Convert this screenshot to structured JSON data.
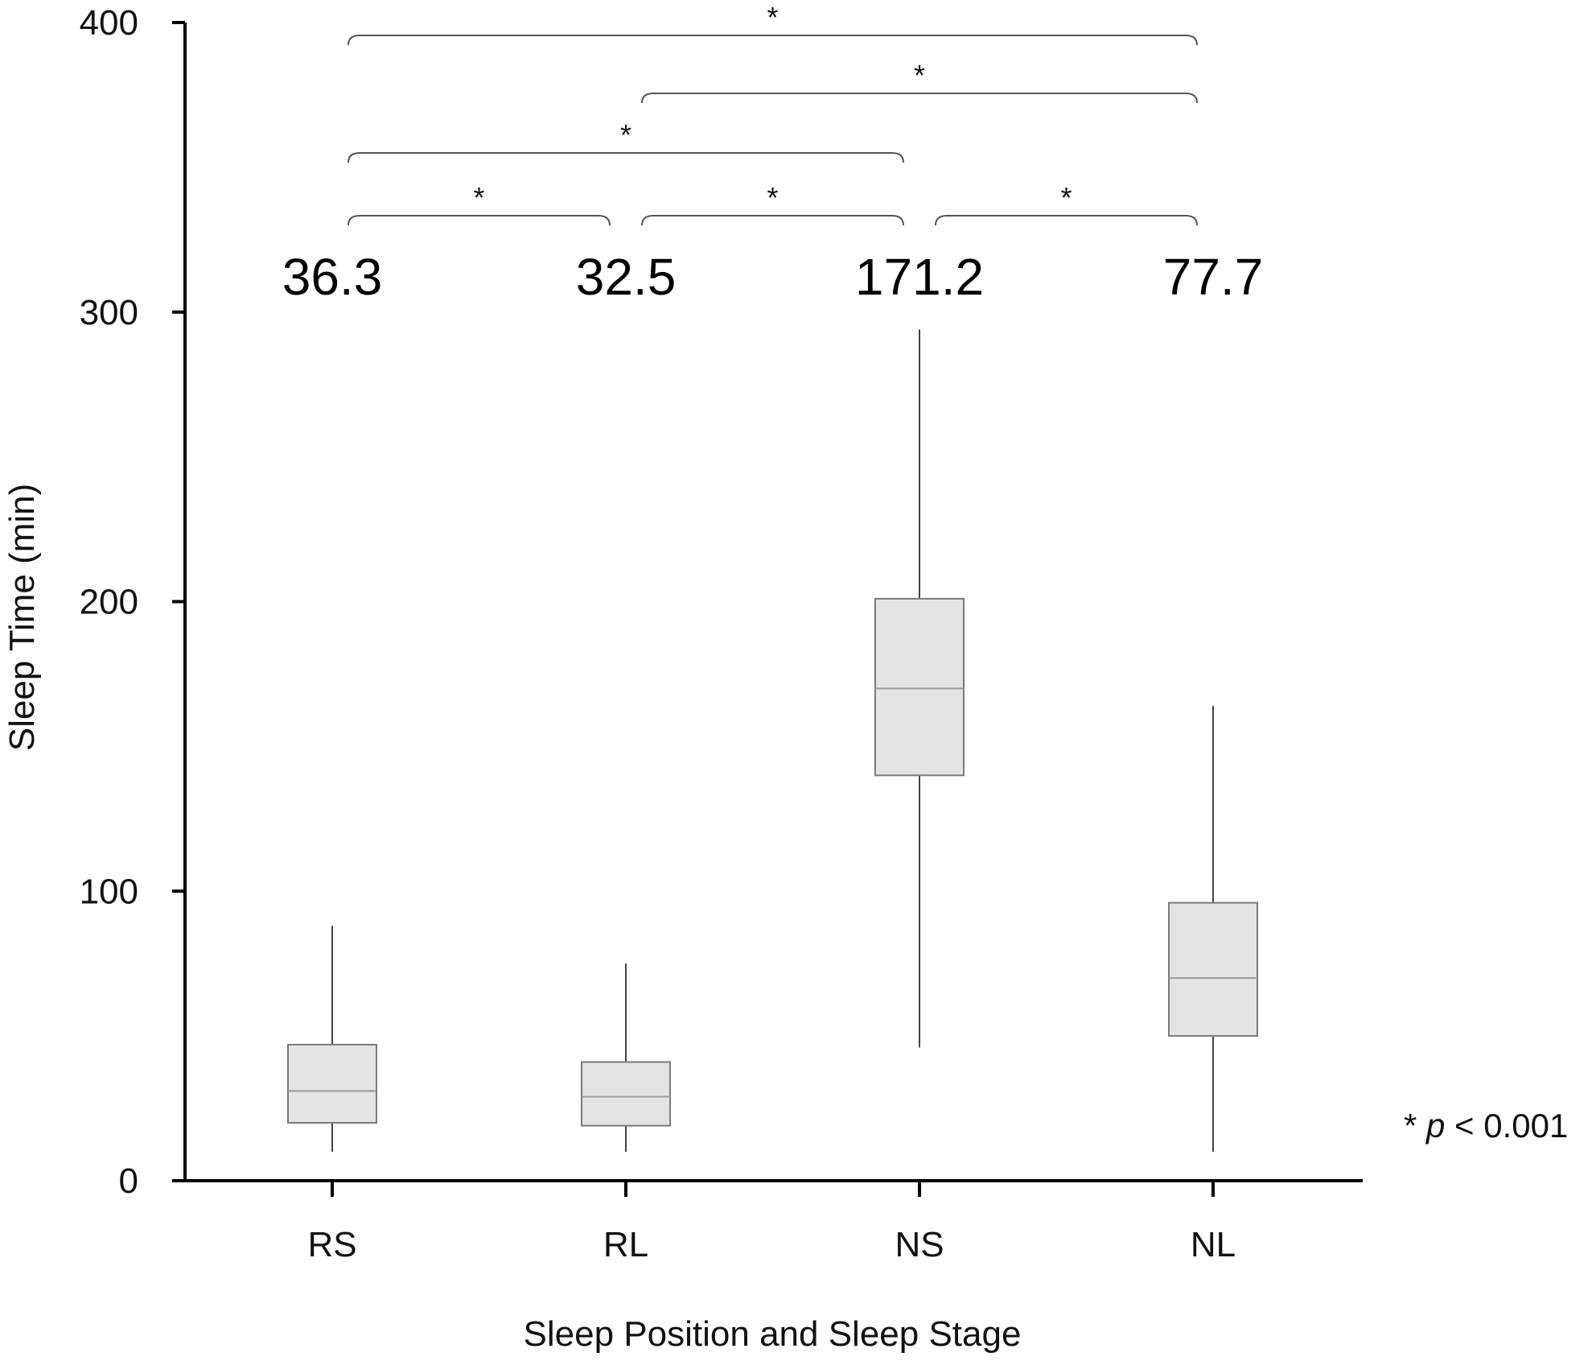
{
  "chart_data": {
    "type": "box",
    "xlabel": "Sleep Position and Sleep Stage",
    "ylabel": "Sleep Time (min)",
    "ylim": [
      0,
      400
    ],
    "yticks": [
      0,
      100,
      200,
      300,
      400
    ],
    "categories": [
      "RS",
      "RL",
      "NS",
      "NL"
    ],
    "boxes": [
      {
        "category": "RS",
        "min": 10,
        "q1": 20,
        "median": 31,
        "q3": 47,
        "max": 88
      },
      {
        "category": "RL",
        "min": 10,
        "q1": 19,
        "median": 29,
        "q3": 41,
        "max": 75
      },
      {
        "category": "NS",
        "min": 46,
        "q1": 140,
        "median": 170,
        "q3": 201,
        "max": 294
      },
      {
        "category": "NL",
        "min": 10,
        "q1": 50,
        "median": 70,
        "q3": 96,
        "max": 164
      }
    ],
    "mean_labels": [
      "36.3",
      "32.5",
      "171.2",
      "77.7"
    ],
    "significance": [
      {
        "from": "RS",
        "to": "NL",
        "label": "*",
        "level": 4
      },
      {
        "from": "RL",
        "to": "NL",
        "label": "*",
        "level": 3
      },
      {
        "from": "RS",
        "to": "NS",
        "label": "*",
        "level": 2
      },
      {
        "from": "RS",
        "to": "RL",
        "label": "*",
        "level": 1
      },
      {
        "from": "RL",
        "to": "NS",
        "label": "*",
        "level": 1
      },
      {
        "from": "NS",
        "to": "NL",
        "label": "*",
        "level": 1
      }
    ],
    "note": {
      "prefix": "* ",
      "var": "p",
      "suffix": " < 0.001"
    },
    "colors": {
      "box_fill": "#e3e3e3",
      "box_stroke": "#7a7a7a",
      "whisker": "#444444"
    }
  }
}
